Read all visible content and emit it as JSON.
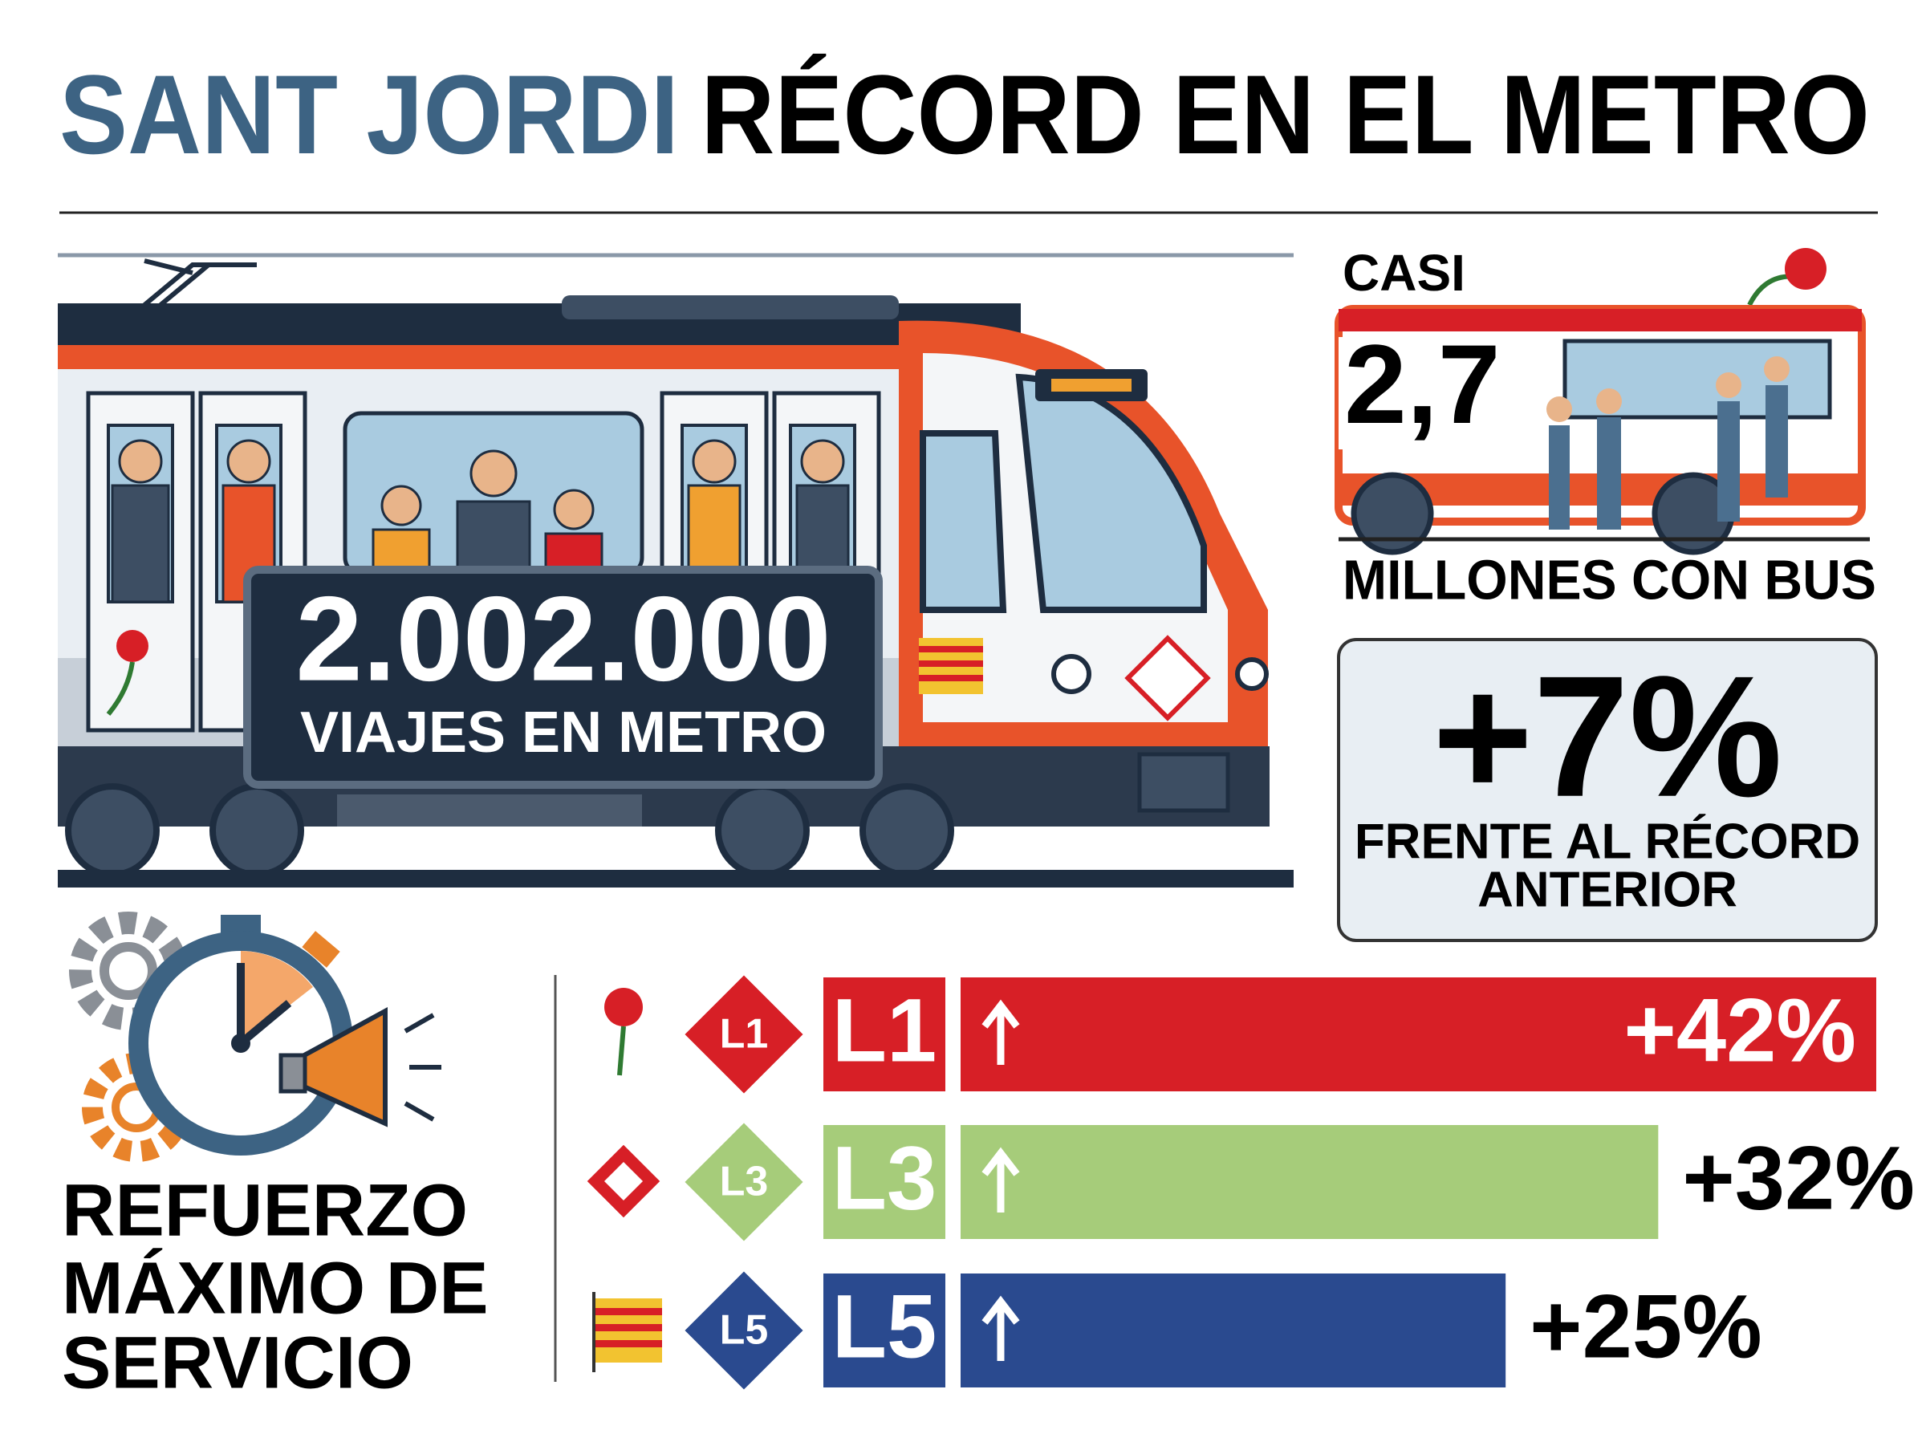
{
  "header": {
    "title_highlight": "SANT JORDI",
    "title_rest": "RÉCORD EN EL METRO"
  },
  "metro": {
    "value": "2.002.000",
    "label": "VIAJES EN METRO"
  },
  "bus": {
    "prefix": "CASI",
    "value": "2,7",
    "label": "MILLONES CON BUS"
  },
  "increase": {
    "value": "+7%",
    "label_lines": [
      "FRENTE AL RÉCORD",
      "ANTERIOR"
    ]
  },
  "service": {
    "lines": [
      "REFUERZO",
      "MÁXIMO DE",
      "SERVICIO"
    ]
  },
  "chart_data": {
    "type": "bar",
    "categories": [
      "L1",
      "L3",
      "L5"
    ],
    "values": [
      42,
      32,
      25
    ],
    "value_labels": [
      "+42%",
      "+32%",
      "+25%"
    ],
    "colors": [
      "#d71f26",
      "#a6cc7a",
      "#2a4a8f"
    ]
  }
}
